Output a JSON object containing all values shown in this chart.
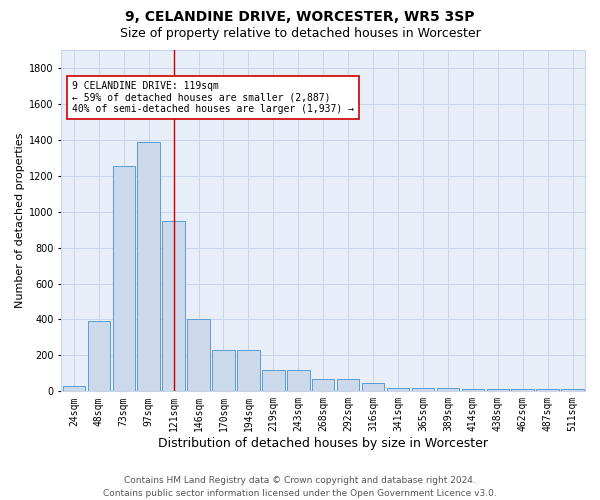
{
  "title1": "9, CELANDINE DRIVE, WORCESTER, WR5 3SP",
  "title2": "Size of property relative to detached houses in Worcester",
  "xlabel": "Distribution of detached houses by size in Worcester",
  "ylabel": "Number of detached properties",
  "footnote": "Contains HM Land Registry data © Crown copyright and database right 2024.\nContains public sector information licensed under the Open Government Licence v3.0.",
  "bar_labels": [
    "24sqm",
    "48sqm",
    "73sqm",
    "97sqm",
    "121sqm",
    "146sqm",
    "170sqm",
    "194sqm",
    "219sqm",
    "243sqm",
    "268sqm",
    "292sqm",
    "316sqm",
    "341sqm",
    "365sqm",
    "389sqm",
    "414sqm",
    "438sqm",
    "462sqm",
    "487sqm",
    "511sqm"
  ],
  "bar_values": [
    30,
    390,
    1255,
    1390,
    950,
    400,
    230,
    230,
    120,
    120,
    70,
    70,
    45,
    20,
    20,
    20,
    15,
    15,
    15,
    15,
    15
  ],
  "bar_color": "#ccd9ea",
  "bar_edge_color": "#5b9bd5",
  "red_line_index": 4,
  "annotation_text": "9 CELANDINE DRIVE: 119sqm\n← 59% of detached houses are smaller (2,887)\n40% of semi-detached houses are larger (1,937) →",
  "annotation_box_color": "#ffffff",
  "annotation_box_edge_color": "#cc0000",
  "ylim": [
    0,
    1900
  ],
  "yticks": [
    0,
    200,
    400,
    600,
    800,
    1000,
    1200,
    1400,
    1600,
    1800
  ],
  "grid_color": "#c8d4e8",
  "bg_color": "#e8eef8",
  "title1_fontsize": 10,
  "title2_fontsize": 9,
  "ylabel_fontsize": 8,
  "xlabel_fontsize": 9,
  "tick_fontsize": 7,
  "footnote_fontsize": 6.5,
  "ann_fontsize": 7
}
